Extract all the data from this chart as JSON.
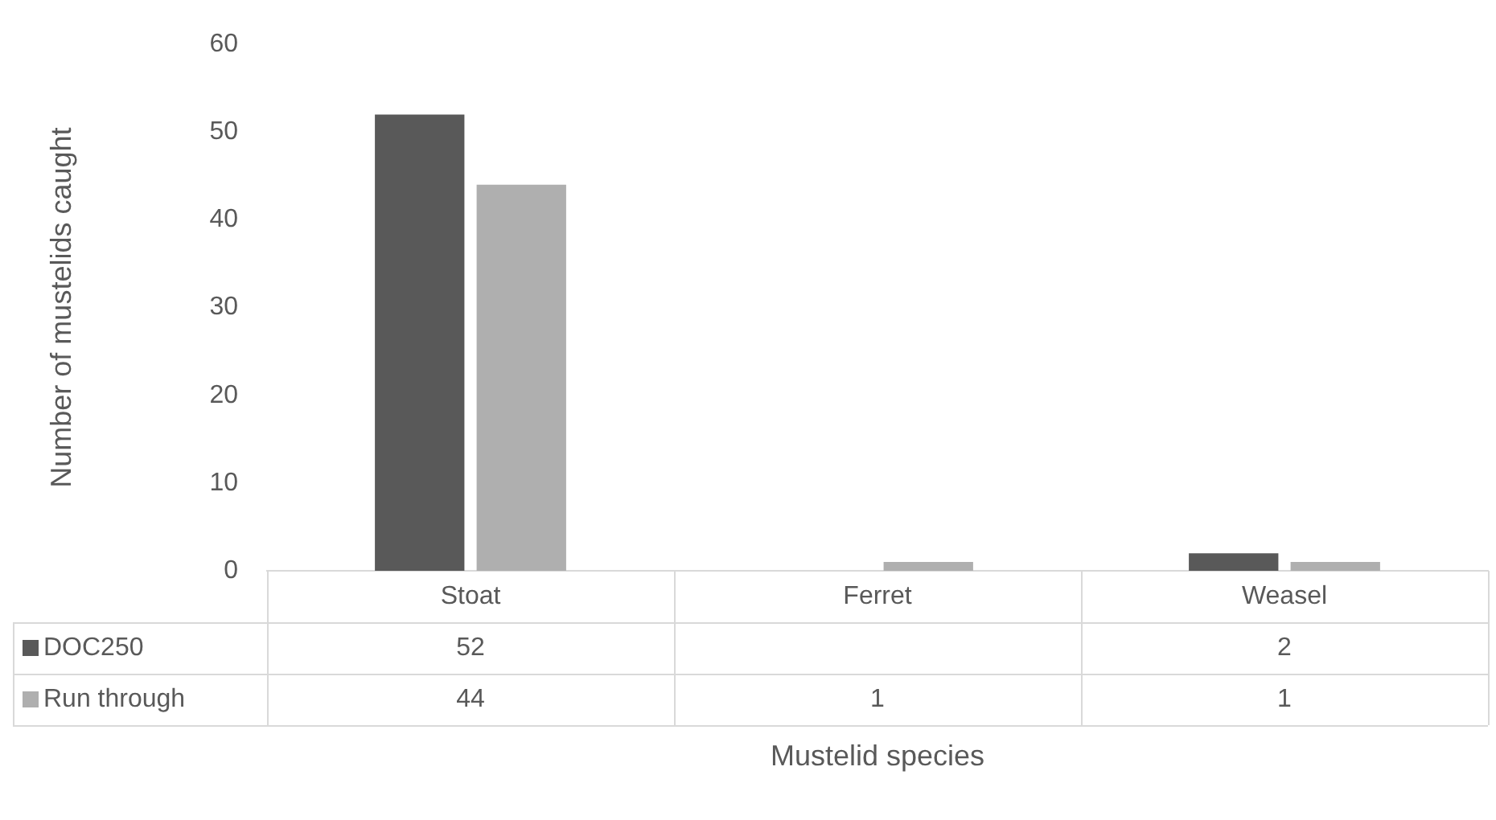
{
  "chart_data": {
    "type": "bar",
    "xlabel": "Mustelid species",
    "ylabel": "Number of mustelids caught",
    "categories": [
      "Stoat",
      "Ferret",
      "Weasel"
    ],
    "series": [
      {
        "name": "DOC250",
        "color": "#595959",
        "values": [
          52,
          null,
          2
        ]
      },
      {
        "name": "Run through",
        "color": "#afafaf",
        "values": [
          44,
          1,
          1
        ]
      }
    ],
    "ylim": [
      0,
      60
    ],
    "yticks": [
      0,
      10,
      20,
      30,
      40,
      50,
      60
    ],
    "data_labels": true,
    "legend": "bottom"
  }
}
